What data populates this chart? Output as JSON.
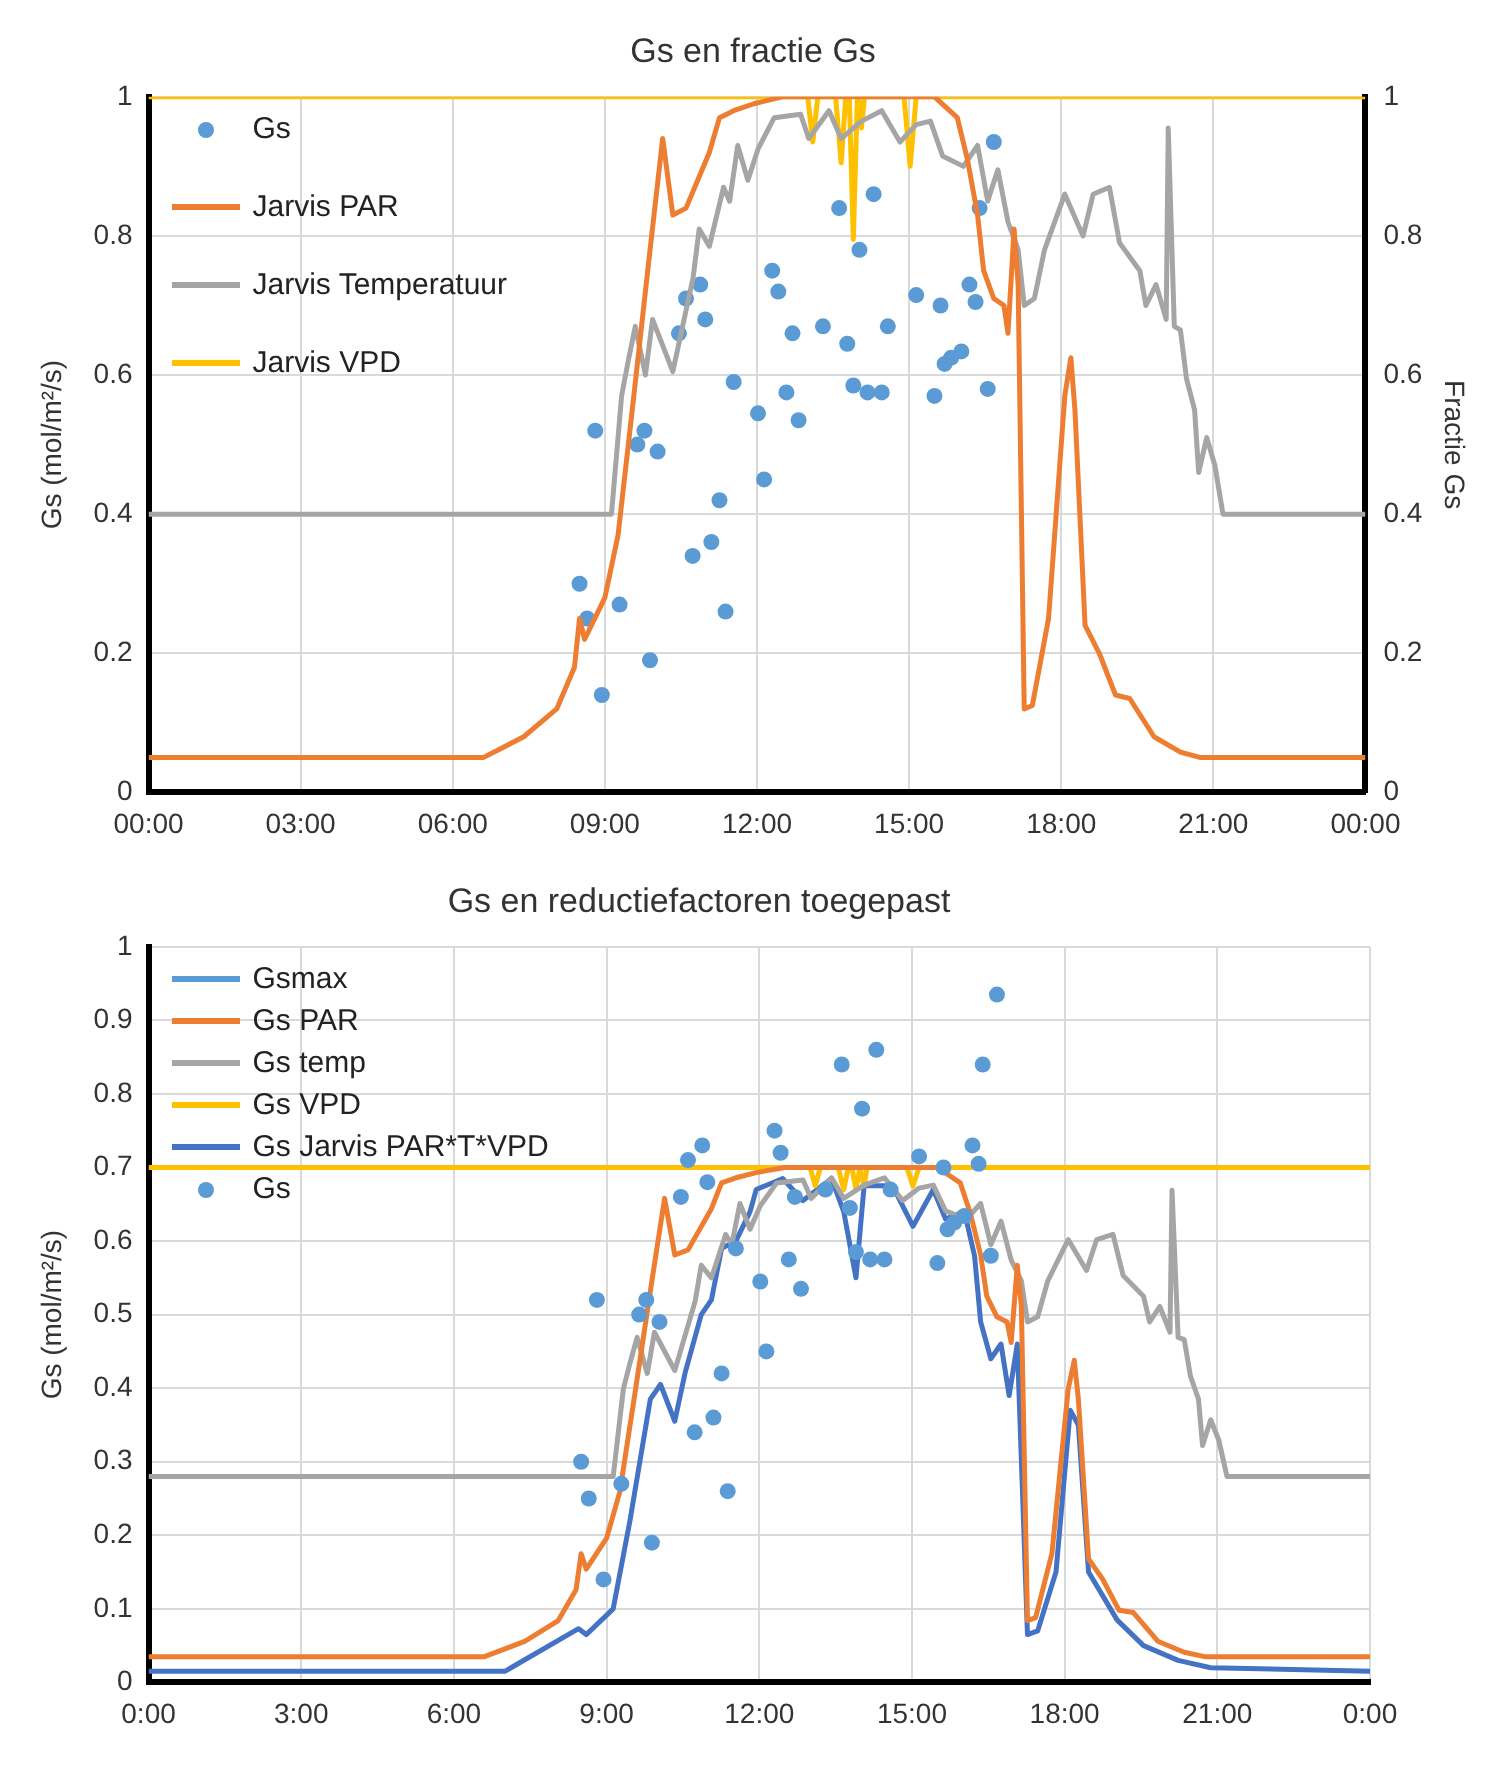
{
  "chart_data": [
    {
      "type": "line",
      "title": "Gs en fractie Gs",
      "ylabel": "Gs (mol/m²/s)",
      "y2label": "Fractie Gs",
      "xlim": [
        0,
        24
      ],
      "xticks": [
        {
          "value": 0,
          "label": "00:00"
        },
        {
          "value": 3,
          "label": "03:00"
        },
        {
          "value": 6,
          "label": "06:00"
        },
        {
          "value": 9,
          "label": "09:00"
        },
        {
          "value": 12,
          "label": "12:00"
        },
        {
          "value": 15,
          "label": "15:00"
        },
        {
          "value": 18,
          "label": "18:00"
        },
        {
          "value": 21,
          "label": "21:00"
        },
        {
          "value": 24,
          "label": "00:00"
        }
      ],
      "ylim": [
        0,
        1
      ],
      "yticks": [
        0,
        0.2,
        0.4,
        0.6,
        0.8,
        1
      ],
      "y2lim": [
        0,
        1
      ],
      "y2ticks": [
        0,
        0.2,
        0.4,
        0.6,
        0.8,
        1
      ],
      "grid": true,
      "legend": "top left",
      "series": [
        {
          "name": "Gs",
          "type": "scatter",
          "marker": "circle",
          "color": "#5b9bd5",
          "x": [
            8.5,
            8.65,
            8.81,
            8.94,
            9.29,
            9.64,
            9.78,
            9.89,
            10.04,
            10.46,
            10.6,
            10.73,
            10.88,
            10.98,
            11.1,
            11.26,
            11.38,
            11.54,
            12.02,
            12.14,
            12.3,
            12.42,
            12.58,
            12.7,
            12.82,
            13.3,
            13.62,
            13.78,
            13.9,
            14.02,
            14.18,
            14.3,
            14.46,
            14.58,
            15.14,
            15.5,
            15.62,
            15.7,
            15.83,
            16.03,
            16.19,
            16.31,
            16.39,
            16.55,
            16.67
          ],
          "values": [
            0.3,
            0.25,
            0.52,
            0.14,
            0.27,
            0.5,
            0.52,
            0.19,
            0.49,
            0.66,
            0.71,
            0.34,
            0.73,
            0.68,
            0.36,
            0.42,
            0.26,
            0.59,
            0.545,
            0.45,
            0.75,
            0.72,
            0.575,
            0.66,
            0.535,
            0.67,
            0.84,
            0.645,
            0.585,
            0.78,
            0.575,
            0.86,
            0.575,
            0.67,
            0.715,
            0.57,
            0.7,
            0.616,
            0.625,
            0.634,
            0.73,
            0.705,
            0.84,
            0.58,
            0.935
          ]
        },
        {
          "name": "Jarvis PAR",
          "axis": "y2",
          "color": "#ed7d31",
          "x": [
            0,
            6.6,
            7.4,
            8.05,
            8.4,
            8.5,
            8.6,
            9.0,
            9.26,
            9.54,
            9.86,
            10.14,
            10.34,
            10.6,
            11.06,
            11.26,
            11.54,
            11.94,
            12.5,
            15.5,
            15.95,
            16.15,
            16.35,
            16.47,
            16.67,
            16.87,
            16.95,
            17.07,
            17.15,
            17.27,
            17.43,
            17.75,
            18.07,
            18.19,
            18.27,
            18.47,
            18.75,
            19.07,
            19.35,
            19.83,
            20.35,
            20.75,
            24
          ],
          "values": [
            0.05,
            0.05,
            0.08,
            0.12,
            0.18,
            0.25,
            0.22,
            0.28,
            0.37,
            0.55,
            0.76,
            0.94,
            0.83,
            0.84,
            0.92,
            0.97,
            0.98,
            0.99,
            1,
            1,
            0.97,
            0.91,
            0.83,
            0.75,
            0.71,
            0.7,
            0.66,
            0.81,
            0.73,
            0.12,
            0.125,
            0.25,
            0.57,
            0.625,
            0.55,
            0.24,
            0.2,
            0.14,
            0.135,
            0.08,
            0.058,
            0.05,
            0.05
          ]
        },
        {
          "name": "Jarvis Temperatuur",
          "axis": "y2",
          "color": "#a5a5a5",
          "x": [
            0,
            9.13,
            9.33,
            9.46,
            9.6,
            9.8,
            9.94,
            10.34,
            10.74,
            10.86,
            11.06,
            11.34,
            11.46,
            11.62,
            11.82,
            12.02,
            12.34,
            12.86,
            13.02,
            13.42,
            13.66,
            14.06,
            14.46,
            14.82,
            15.14,
            15.42,
            15.66,
            16.07,
            16.35,
            16.55,
            16.75,
            16.95,
            17.15,
            17.27,
            17.47,
            17.67,
            18.07,
            18.43,
            18.63,
            18.95,
            19.15,
            19.55,
            19.67,
            19.87,
            20.07,
            20.11,
            20.23,
            20.35,
            20.47,
            20.63,
            20.71,
            20.87,
            21.03,
            21.19,
            24
          ],
          "values": [
            0.4,
            0.4,
            0.57,
            0.62,
            0.67,
            0.6,
            0.68,
            0.605,
            0.74,
            0.81,
            0.785,
            0.87,
            0.85,
            0.93,
            0.88,
            0.925,
            0.97,
            0.975,
            0.94,
            0.98,
            0.94,
            0.965,
            0.98,
            0.935,
            0.96,
            0.965,
            0.915,
            0.9,
            0.93,
            0.85,
            0.895,
            0.82,
            0.78,
            0.7,
            0.71,
            0.78,
            0.86,
            0.8,
            0.86,
            0.87,
            0.79,
            0.75,
            0.7,
            0.73,
            0.68,
            0.955,
            0.67,
            0.665,
            0.595,
            0.55,
            0.46,
            0.51,
            0.47,
            0.4,
            0.4
          ]
        },
        {
          "name": "Jarvis VPD",
          "axis": "y2",
          "color": "#ffc000",
          "x": [
            0,
            13.0,
            13.1,
            13.2,
            13.55,
            13.66,
            13.75,
            13.82,
            13.9,
            13.98,
            14.0,
            14.06,
            14.12,
            14.9,
            15.02,
            15.14,
            24
          ],
          "values": [
            1,
            1,
            0.935,
            1,
            1,
            0.905,
            1,
            1,
            0.795,
            1,
            1,
            0.955,
            1,
            1,
            0.9,
            1,
            1
          ]
        }
      ]
    },
    {
      "type": "line",
      "title": "Gs en reductiefactoren toegepast",
      "ylabel": "Gs (mol/m²/s)",
      "xlim": [
        0,
        24
      ],
      "xticks": [
        {
          "value": 0,
          "label": "0:00"
        },
        {
          "value": 3,
          "label": "3:00"
        },
        {
          "value": 6,
          "label": "6:00"
        },
        {
          "value": 9,
          "label": "9:00"
        },
        {
          "value": 12,
          "label": "12:00"
        },
        {
          "value": 15,
          "label": "15:00"
        },
        {
          "value": 18,
          "label": "18:00"
        },
        {
          "value": 21,
          "label": "21:00"
        },
        {
          "value": 24,
          "label": "0:00"
        }
      ],
      "ylim": [
        0,
        1
      ],
      "yticks": [
        0,
        0.1,
        0.2,
        0.3,
        0.4,
        0.5,
        0.6,
        0.7,
        0.8,
        0.9,
        1
      ],
      "grid": true,
      "legend": "top left",
      "series": [
        {
          "name": "Gsmax",
          "color": "#5b9bd5"
        },
        {
          "name": "Gs PAR",
          "color": "#ed7d31",
          "x": [
            0,
            6.6,
            7.4,
            8.05,
            8.4,
            8.5,
            8.6,
            9.0,
            9.26,
            9.54,
            9.86,
            10.14,
            10.34,
            10.6,
            11.06,
            11.26,
            11.54,
            11.94,
            12.5,
            15.5,
            15.95,
            16.15,
            16.35,
            16.47,
            16.67,
            16.87,
            16.95,
            17.07,
            17.15,
            17.27,
            17.43,
            17.75,
            18.07,
            18.19,
            18.27,
            18.47,
            18.75,
            19.07,
            19.35,
            19.83,
            20.35,
            20.75,
            24
          ],
          "values": [
            0.035,
            0.035,
            0.056,
            0.084,
            0.126,
            0.175,
            0.154,
            0.196,
            0.259,
            0.385,
            0.532,
            0.658,
            0.581,
            0.588,
            0.644,
            0.679,
            0.686,
            0.693,
            0.7,
            0.7,
            0.679,
            0.637,
            0.581,
            0.525,
            0.497,
            0.49,
            0.462,
            0.567,
            0.511,
            0.084,
            0.088,
            0.175,
            0.399,
            0.438,
            0.385,
            0.168,
            0.14,
            0.098,
            0.095,
            0.056,
            0.041,
            0.035,
            0.035
          ]
        },
        {
          "name": "Gs temp",
          "color": "#a5a5a5",
          "x": [
            0,
            9.13,
            9.33,
            9.46,
            9.6,
            9.8,
            9.94,
            10.34,
            10.74,
            10.86,
            11.06,
            11.34,
            11.46,
            11.62,
            11.82,
            12.02,
            12.34,
            12.86,
            13.02,
            13.42,
            13.66,
            14.06,
            14.46,
            14.82,
            15.14,
            15.42,
            15.66,
            16.07,
            16.35,
            16.55,
            16.75,
            16.95,
            17.15,
            17.27,
            17.47,
            17.67,
            18.07,
            18.43,
            18.63,
            18.95,
            19.15,
            19.55,
            19.67,
            19.87,
            20.07,
            20.11,
            20.23,
            20.35,
            20.47,
            20.63,
            20.71,
            20.87,
            21.03,
            21.19,
            24
          ],
          "values": [
            0.28,
            0.28,
            0.399,
            0.434,
            0.469,
            0.42,
            0.476,
            0.424,
            0.518,
            0.567,
            0.55,
            0.609,
            0.595,
            0.651,
            0.616,
            0.648,
            0.679,
            0.683,
            0.658,
            0.686,
            0.658,
            0.676,
            0.686,
            0.655,
            0.672,
            0.676,
            0.641,
            0.63,
            0.651,
            0.595,
            0.627,
            0.574,
            0.546,
            0.49,
            0.497,
            0.546,
            0.602,
            0.56,
            0.602,
            0.609,
            0.553,
            0.525,
            0.49,
            0.511,
            0.476,
            0.669,
            0.469,
            0.466,
            0.417,
            0.385,
            0.322,
            0.357,
            0.329,
            0.28,
            0.28
          ]
        },
        {
          "name": "Gs VPD",
          "color": "#ffc000",
          "x": [
            0,
            13.0,
            13.1,
            13.2,
            13.55,
            13.66,
            13.75,
            13.82,
            13.9,
            13.98,
            14.0,
            14.06,
            14.12,
            14.9,
            15.02,
            15.14,
            24
          ],
          "values": [
            0.7,
            0.7,
            0.675,
            0.7,
            0.7,
            0.67,
            0.7,
            0.7,
            0.67,
            0.7,
            0.7,
            0.675,
            0.7,
            0.7,
            0.675,
            0.7,
            0.7
          ]
        },
        {
          "name": "Gs Jarvis PAR*T*VPD",
          "color": "#4472c4",
          "x": [
            0,
            7.0,
            8.45,
            8.6,
            9.13,
            9.46,
            9.86,
            10.06,
            10.34,
            10.54,
            10.86,
            11.06,
            11.26,
            11.54,
            11.82,
            11.94,
            12.46,
            12.86,
            13.42,
            13.66,
            13.9,
            14.06,
            14.62,
            15.02,
            15.42,
            15.66,
            16.03,
            16.23,
            16.35,
            16.55,
            16.75,
            16.91,
            17.07,
            17.27,
            17.47,
            17.83,
            18.11,
            18.27,
            18.47,
            19.03,
            19.55,
            20.23,
            20.87,
            24
          ],
          "values": [
            0.015,
            0.015,
            0.073,
            0.065,
            0.1,
            0.22,
            0.385,
            0.405,
            0.355,
            0.42,
            0.5,
            0.52,
            0.59,
            0.6,
            0.64,
            0.67,
            0.685,
            0.655,
            0.685,
            0.64,
            0.55,
            0.675,
            0.675,
            0.62,
            0.67,
            0.63,
            0.64,
            0.58,
            0.49,
            0.44,
            0.46,
            0.39,
            0.46,
            0.065,
            0.07,
            0.15,
            0.37,
            0.35,
            0.15,
            0.085,
            0.05,
            0.03,
            0.02,
            0.015
          ]
        },
        {
          "name": "Gs",
          "type": "scatter",
          "marker": "circle",
          "color": "#5b9bd5",
          "x": [
            8.5,
            8.65,
            8.81,
            8.94,
            9.29,
            9.64,
            9.78,
            9.89,
            10.04,
            10.46,
            10.6,
            10.73,
            10.88,
            10.98,
            11.1,
            11.26,
            11.38,
            11.54,
            12.02,
            12.14,
            12.3,
            12.42,
            12.58,
            12.7,
            12.82,
            13.3,
            13.62,
            13.78,
            13.9,
            14.02,
            14.18,
            14.3,
            14.46,
            14.58,
            15.14,
            15.5,
            15.62,
            15.7,
            15.83,
            16.03,
            16.19,
            16.31,
            16.39,
            16.55,
            16.67
          ],
          "values": [
            0.3,
            0.25,
            0.52,
            0.14,
            0.27,
            0.5,
            0.52,
            0.19,
            0.49,
            0.66,
            0.71,
            0.34,
            0.73,
            0.68,
            0.36,
            0.42,
            0.26,
            0.59,
            0.545,
            0.45,
            0.75,
            0.72,
            0.575,
            0.66,
            0.535,
            0.67,
            0.84,
            0.645,
            0.585,
            0.78,
            0.575,
            0.86,
            0.575,
            0.67,
            0.715,
            0.57,
            0.7,
            0.616,
            0.625,
            0.634,
            0.73,
            0.705,
            0.84,
            0.58,
            0.935
          ]
        }
      ]
    }
  ]
}
